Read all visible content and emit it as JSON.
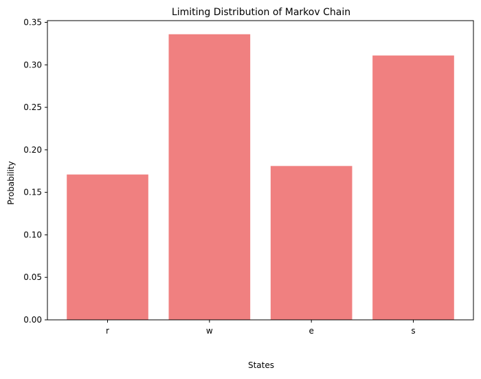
{
  "chart_data": {
    "type": "bar",
    "title": "Limiting Distribution of Markov Chain",
    "xlabel": "States",
    "ylabel": "Probability",
    "categories": [
      "r",
      "w",
      "e",
      "s"
    ],
    "values": [
      0.171,
      0.336,
      0.181,
      0.311
    ],
    "ylim": [
      0,
      0.352
    ],
    "yticks": [
      0.0,
      0.05,
      0.1,
      0.15,
      0.2,
      0.25,
      0.3,
      0.35
    ],
    "ytick_labels": [
      "0.00",
      "0.05",
      "0.10",
      "0.15",
      "0.20",
      "0.25",
      "0.30",
      "0.35"
    ],
    "bar_color": "#f08080",
    "grid": false,
    "legend": "none"
  }
}
